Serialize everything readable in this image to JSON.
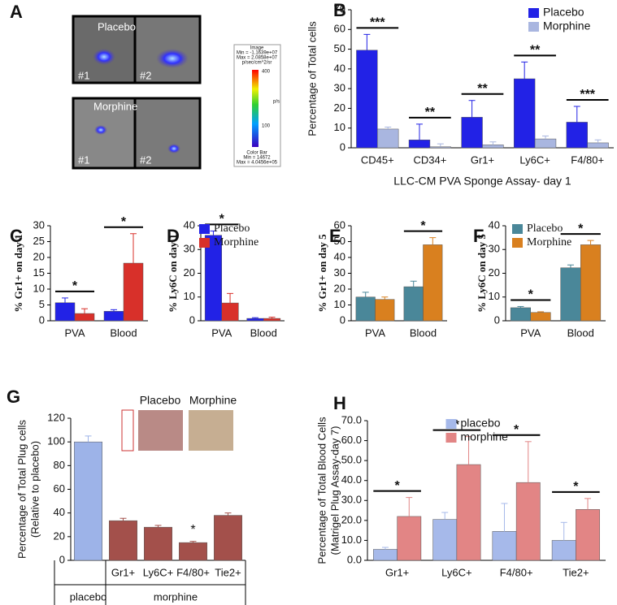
{
  "image_panel": {
    "panel": "A",
    "top_label": "Placebo",
    "bottom_label": "Morphine",
    "image_ids": [
      "#1",
      "#2",
      "#1",
      "#2"
    ],
    "info_lines": [
      "Image",
      "Min = -1.1639e+07",
      "Max = 2.0858e+07",
      "p/sec/cm^2/sr"
    ],
    "colorbar_ticks": [
      "400",
      "100"
    ],
    "colorbar_unit": "p/s",
    "colorbar_lines": [
      "Color Bar",
      "Min = 14672",
      "Max = 4.0456e+05"
    ]
  },
  "chart_data": [
    {
      "type": "bar",
      "panel": "B",
      "categories": [
        "CD45+",
        "CD34+",
        "Gr1+",
        "Ly6C+",
        "F4/80+"
      ],
      "series": [
        {
          "name": "Placebo",
          "color": "#2222e6",
          "values": [
            49.5,
            4,
            15.5,
            35,
            13
          ],
          "errors": [
            8,
            8,
            8.5,
            8.5,
            8
          ]
        },
        {
          "name": "Morphine",
          "color": "#a9b6e0",
          "values": [
            9.5,
            0.5,
            1.5,
            4.5,
            2.5
          ],
          "errors": [
            1,
            1.5,
            1.5,
            1.5,
            1.5
          ]
        }
      ],
      "significance": [
        "***",
        "**",
        "**",
        "**",
        "***"
      ],
      "ylim": [
        0,
        70
      ],
      "yticks": [
        0,
        10,
        20,
        30,
        40,
        50,
        60,
        70
      ],
      "ylabel": [
        "Percentage of Total cells"
      ],
      "xlabel": "LLC-CM PVA Sponge Assay- day 1",
      "legend": "upper right"
    },
    {
      "type": "bar",
      "panel": "C",
      "categories": [
        "PVA",
        "Blood"
      ],
      "series": [
        {
          "color": "#2222e6",
          "values": [
            5.7,
            3
          ],
          "errors": [
            1.5,
            0.5
          ]
        },
        {
          "color": "#d8302a",
          "values": [
            2.3,
            18.2
          ],
          "errors": [
            1.5,
            9.3
          ]
        }
      ],
      "significance": [
        "*",
        "*"
      ],
      "ylim": [
        0,
        30
      ],
      "yticks": [
        0,
        5,
        10,
        15,
        20,
        25,
        30
      ],
      "ylabel": [
        "% Gr1+ on day 1"
      ]
    },
    {
      "type": "bar",
      "panel": "D",
      "categories": [
        "PVA",
        "Blood"
      ],
      "series": [
        {
          "name": "Placebo",
          "color": "#2222e6",
          "values": [
            36,
            1
          ],
          "errors": [
            1.8,
            0.3
          ]
        },
        {
          "name": "Morphine",
          "color": "#d8302a",
          "values": [
            7.5,
            1
          ],
          "errors": [
            4,
            0.5
          ]
        }
      ],
      "significance": [
        "*",
        null
      ],
      "ylim": [
        0,
        40
      ],
      "yticks": [
        0,
        10,
        20,
        30,
        40
      ],
      "ylabel": [
        "% Ly6C on day 1"
      ],
      "legend": "upper right"
    },
    {
      "type": "bar",
      "panel": "E",
      "categories": [
        "PVA",
        "Blood"
      ],
      "series": [
        {
          "color": "#4a8799",
          "values": [
            15,
            21.5
          ],
          "errors": [
            3,
            3.5
          ]
        },
        {
          "color": "#d9801f",
          "values": [
            13.5,
            48
          ],
          "errors": [
            1.5,
            4.5
          ]
        }
      ],
      "significance": [
        null,
        "*"
      ],
      "ylim": [
        0,
        60
      ],
      "yticks": [
        0,
        10,
        20,
        30,
        40,
        50,
        60
      ],
      "ylabel": [
        "% Gr1+ on day 5"
      ]
    },
    {
      "type": "bar",
      "panel": "F",
      "categories": [
        "PVA",
        "Blood"
      ],
      "series": [
        {
          "name": "Placebo",
          "color": "#4a8799",
          "values": [
            5.5,
            22.3
          ],
          "errors": [
            0.5,
            1.2
          ]
        },
        {
          "name": "Morphine",
          "color": "#d9801f",
          "values": [
            3.5,
            32
          ],
          "errors": [
            0.3,
            1.8
          ]
        }
      ],
      "significance": [
        "*",
        "*"
      ],
      "ylim": [
        0,
        40
      ],
      "yticks": [
        0,
        10,
        20,
        30,
        40
      ],
      "ylabel": [
        "% Ly6C on day 5"
      ],
      "legend": "upper left"
    },
    {
      "type": "bar",
      "panel": "G",
      "categories": [
        null,
        "Gr1+",
        "Ly6C+",
        "F4/80+",
        "Tie2+"
      ],
      "series": [
        {
          "colors": [
            "#9db3e8",
            "#a3504b",
            "#a3504b",
            "#a3504b",
            "#a3504b"
          ],
          "values": [
            100,
            33.5,
            28,
            15,
            38
          ],
          "errors": [
            5,
            2,
            1.5,
            1,
            2
          ]
        }
      ],
      "significance": [
        null,
        null,
        null,
        "*",
        null
      ],
      "groups": [
        "placebo",
        "morphine"
      ],
      "inset_labels": [
        "Placebo",
        "Morphine"
      ],
      "ylim": [
        0,
        120
      ],
      "yticks": [
        0,
        20,
        40,
        60,
        80,
        100,
        120
      ],
      "ylabel": [
        "Percentage of Total Plug cells",
        "(Relative to placebo)"
      ]
    },
    {
      "type": "bar",
      "panel": "H",
      "categories": [
        "Gr1+",
        "Ly6C+",
        "F4/80+",
        "Tie2+"
      ],
      "series": [
        {
          "name": "placebo",
          "color": "#a6b9ea",
          "values": [
            5.5,
            20.5,
            14.5,
            10
          ],
          "errors": [
            1,
            3.5,
            14,
            9
          ]
        },
        {
          "name": "morphine",
          "color": "#e28585",
          "values": [
            22,
            48,
            39,
            25.5
          ],
          "errors": [
            9.5,
            14,
            20.5,
            5.5
          ]
        }
      ],
      "significance": [
        "*",
        "*",
        "*",
        "*"
      ],
      "ylim": [
        0,
        70
      ],
      "yticks": [
        {
          "value": 0,
          "label": "0.0"
        },
        {
          "value": 10,
          "label": "10.0"
        },
        {
          "value": 20,
          "label": "20.0"
        },
        {
          "value": 30,
          "label": "30.0"
        },
        {
          "value": 40,
          "label": "40.0"
        },
        {
          "value": 50,
          "label": "50.0"
        },
        {
          "value": 60,
          "label": "60.0"
        },
        {
          "value": 70,
          "label": "70.0"
        }
      ],
      "ylabel": [
        "Percentage of Total Blood Cells",
        "(Matrigel Plug Assay-day 7)"
      ],
      "legend": "upper center"
    }
  ]
}
